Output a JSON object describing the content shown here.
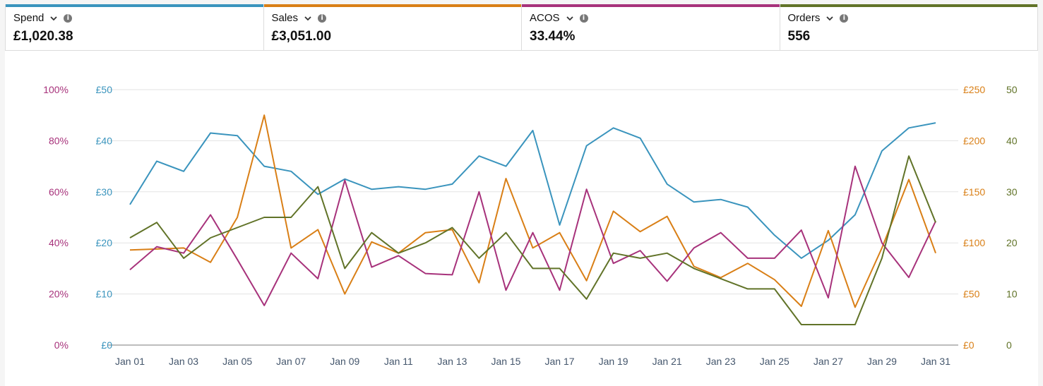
{
  "metrics": [
    {
      "name": "Spend",
      "value": "£1,020.38",
      "color": "#3a94bd"
    },
    {
      "name": "Sales",
      "value": "£3,051.00",
      "color": "#d97f16"
    },
    {
      "name": "ACOS",
      "value": "33.44%",
      "color": "#a7327b"
    },
    {
      "name": "Orders",
      "value": "556",
      "color": "#617328"
    }
  ],
  "icons": {
    "dropdown": "chevron-down-icon",
    "info": "info-icon"
  },
  "chart_data": {
    "type": "line",
    "title": "",
    "xlabel": "",
    "ylabel": "",
    "grid": true,
    "x": [
      "Jan 01",
      "Jan 02",
      "Jan 03",
      "Jan 04",
      "Jan 05",
      "Jan 06",
      "Jan 07",
      "Jan 08",
      "Jan 09",
      "Jan 10",
      "Jan 11",
      "Jan 12",
      "Jan 13",
      "Jan 14",
      "Jan 15",
      "Jan 16",
      "Jan 17",
      "Jan 18",
      "Jan 19",
      "Jan 20",
      "Jan 21",
      "Jan 22",
      "Jan 23",
      "Jan 24",
      "Jan 25",
      "Jan 26",
      "Jan 27",
      "Jan 28",
      "Jan 29",
      "Jan 30",
      "Jan 31"
    ],
    "x_tick_labels": [
      "Jan 01",
      "Jan 03",
      "Jan 05",
      "Jan 07",
      "Jan 09",
      "Jan 11",
      "Jan 13",
      "Jan 15",
      "Jan 17",
      "Jan 19",
      "Jan 21",
      "Jan 23",
      "Jan 25",
      "Jan 27",
      "Jan 29",
      "Jan 31"
    ],
    "axes": [
      {
        "id": "acos",
        "side": "left-outer",
        "range": [
          0,
          100
        ],
        "ticks": [
          "0%",
          "20%",
          "40%",
          "60%",
          "80%",
          "100%"
        ],
        "color": "#a7327b"
      },
      {
        "id": "spend",
        "side": "left-inner",
        "range": [
          0,
          50
        ],
        "ticks": [
          "£0",
          "£10",
          "£20",
          "£30",
          "£40",
          "£50"
        ],
        "color": "#3a94bd"
      },
      {
        "id": "sales",
        "side": "right-inner",
        "range": [
          0,
          250
        ],
        "ticks": [
          "£0",
          "£50",
          "£100",
          "£150",
          "£200",
          "£250"
        ],
        "color": "#d97f16"
      },
      {
        "id": "orders",
        "side": "right-outer",
        "range": [
          0,
          50
        ],
        "ticks": [
          "0",
          "10",
          "20",
          "30",
          "40",
          "50"
        ],
        "color": "#617328"
      }
    ],
    "series": [
      {
        "name": "Spend",
        "axis": "spend",
        "color": "#3a94bd",
        "values": [
          27.5,
          36,
          34,
          41.5,
          41,
          35,
          34,
          29.5,
          32.5,
          30.5,
          31,
          30.5,
          31.5,
          37,
          35,
          42,
          23.5,
          39,
          42.5,
          40.5,
          31.5,
          28,
          28.5,
          27,
          21.5,
          17,
          20.5,
          25.5,
          38,
          42.5,
          43.5
        ]
      },
      {
        "name": "Sales",
        "axis": "sales",
        "color": "#d97f16",
        "values": [
          93,
          94,
          95,
          81,
          125,
          225,
          95,
          113,
          50,
          101,
          90,
          110,
          113,
          61,
          163,
          95,
          110,
          63,
          131,
          111,
          126,
          77,
          66,
          80,
          64,
          38,
          112,
          37,
          95,
          162,
          90
        ]
      },
      {
        "name": "ACOS",
        "axis": "acos",
        "color": "#a7327b",
        "values": [
          29.5,
          38.5,
          36,
          51,
          33.5,
          15.5,
          36,
          26,
          64.5,
          30.5,
          35,
          28,
          27.5,
          60,
          21.5,
          44,
          21.5,
          61,
          32,
          37,
          25,
          38,
          44,
          34,
          34,
          45,
          18.5,
          70,
          40,
          26.5,
          48.5
        ]
      },
      {
        "name": "Orders",
        "axis": "orders",
        "color": "#617328",
        "values": [
          21,
          24,
          17,
          21,
          23,
          25,
          25,
          31,
          15,
          22,
          18,
          20,
          23,
          17,
          22,
          15,
          15,
          9,
          18,
          17,
          18,
          15,
          13,
          11,
          11,
          4,
          4,
          4,
          17,
          37,
          24
        ]
      }
    ]
  }
}
